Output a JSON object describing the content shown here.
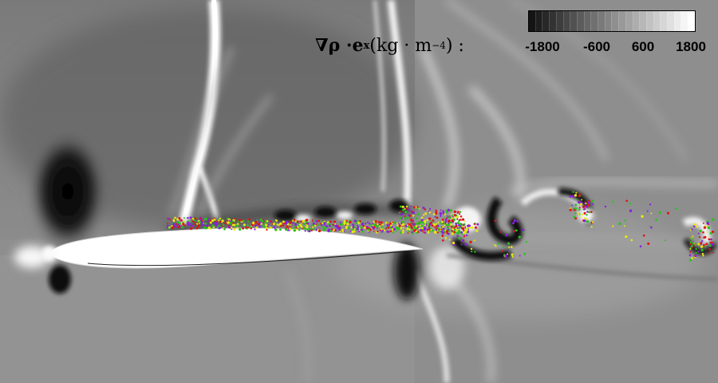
{
  "legend": {
    "label_prefix": "∇ρ · ",
    "label_vector": "e",
    "label_subscript": "x",
    "label_units": " (kg · m",
    "label_exponent": "−4",
    "label_suffix": ") :",
    "ticks": [
      "-1800",
      "-600",
      "600",
      "1800"
    ]
  },
  "colorbar": {
    "min": -1800,
    "max": 1800,
    "levels": 24
  }
}
